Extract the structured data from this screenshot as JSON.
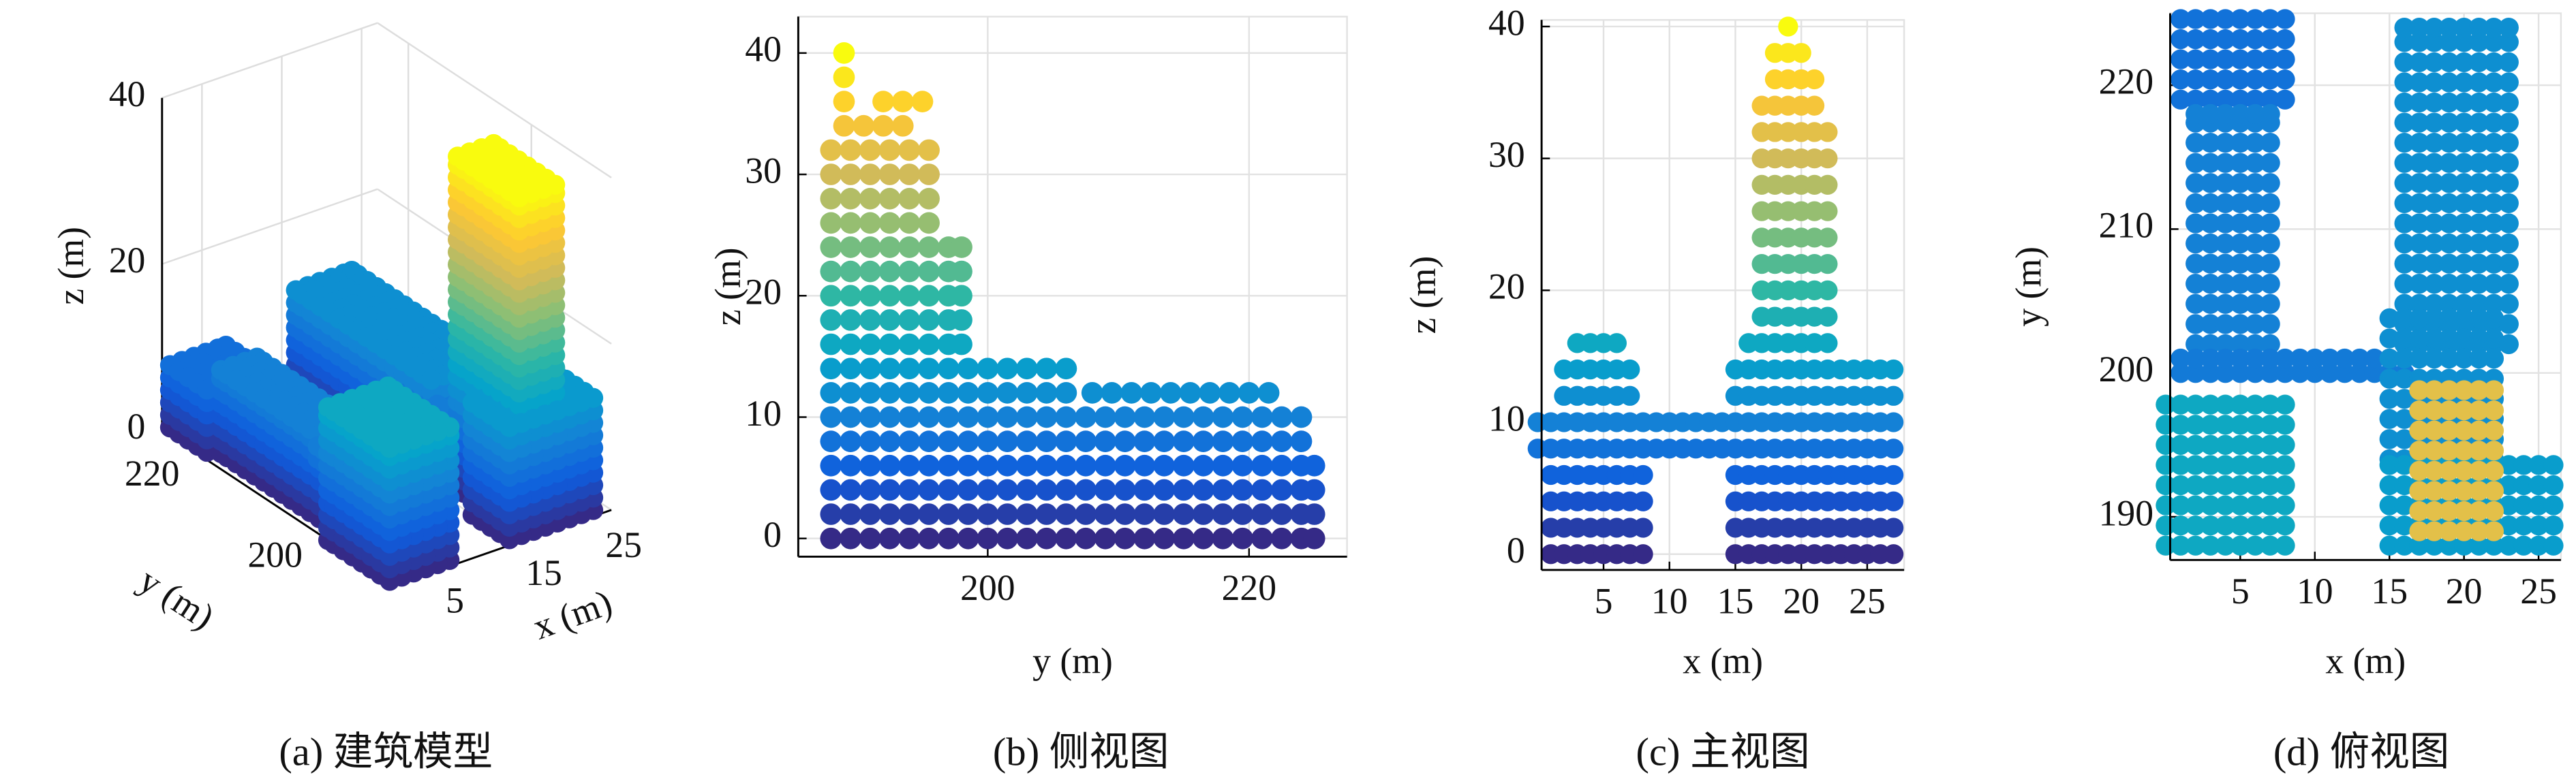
{
  "chart_data": [
    {
      "type": "scatter3d",
      "caption": "(a) 建筑模型",
      "xlabel": "x (m)",
      "ylabel": "y (m)",
      "zlabel": "z (m)",
      "xlim": [
        0,
        27
      ],
      "ylim": [
        187,
        225
      ],
      "zlim": [
        0,
        40
      ],
      "xticks": [
        5,
        15,
        25
      ],
      "yticks": [
        200,
        220
      ],
      "zticks": [
        0,
        20,
        40
      ],
      "clim": [
        0,
        40
      ],
      "colormap": "parula",
      "grid": true,
      "blocks": [
        {
          "x": [
            1,
            8
          ],
          "y": [
            219,
            225
          ],
          "z": [
            0,
            8
          ]
        },
        {
          "x": [
            2,
            7
          ],
          "y": [
            202,
            218
          ],
          "z": [
            0,
            10
          ]
        },
        {
          "x": [
            1,
            16
          ],
          "y": [
            200,
            201
          ],
          "z": [
            8,
            10
          ]
        },
        {
          "x": [
            16,
            23
          ],
          "y": [
            202,
            224
          ],
          "z": [
            0,
            12
          ]
        },
        {
          "x": [
            15,
            26
          ],
          "y": [
            188,
            194
          ],
          "z": [
            0,
            14
          ]
        },
        {
          "x": [
            17,
            22
          ],
          "y": [
            189,
            199
          ],
          "z": [
            0,
            40
          ]
        },
        {
          "x": [
            0,
            8
          ],
          "y": [
            188,
            198
          ],
          "z": [
            0,
            16
          ]
        }
      ]
    },
    {
      "type": "rows",
      "caption": "(b) 侧视图",
      "xlabel": "y (m)",
      "ylabel": "z (m)",
      "xlim": [
        185.5,
        227.5
      ],
      "ylim": [
        -1.5,
        43
      ],
      "xticks": [
        200,
        220
      ],
      "yticks": [
        0,
        10,
        20,
        30,
        40
      ],
      "clim": [
        0,
        40
      ],
      "colormap": "parula",
      "grid": true,
      "rows": [
        {
          "z": 0,
          "from": 188,
          "to": 225
        },
        {
          "z": 2,
          "from": 188,
          "to": 225
        },
        {
          "z": 4,
          "from": 188,
          "to": 225
        },
        {
          "z": 6,
          "from": 188,
          "to": 225
        },
        {
          "z": 8,
          "from": 188,
          "to": 224
        },
        {
          "z": 10,
          "from": 188,
          "to": 224
        },
        {
          "z": 12,
          "from": 188,
          "to": 206
        },
        {
          "z": 12,
          "from": 208,
          "to": 222
        },
        {
          "z": 14,
          "from": 188,
          "to": 206
        },
        {
          "z": 16,
          "from": 188,
          "to": 198
        },
        {
          "z": 18,
          "from": 188,
          "to": 198
        },
        {
          "z": 20,
          "from": 188,
          "to": 198
        },
        {
          "z": 22,
          "from": 188,
          "to": 198
        },
        {
          "z": 24,
          "from": 188,
          "to": 198
        },
        {
          "z": 26,
          "from": 188,
          "to": 196
        },
        {
          "z": 28,
          "from": 188,
          "to": 196
        },
        {
          "z": 30,
          "from": 188,
          "to": 196
        },
        {
          "z": 32,
          "from": 188,
          "to": 196
        },
        {
          "z": 34,
          "from": 189,
          "to": 194
        },
        {
          "z": 36,
          "from": 189,
          "to": 189
        },
        {
          "z": 36,
          "from": 192,
          "to": 195
        },
        {
          "z": 38,
          "from": 189,
          "to": 189
        },
        {
          "z": 40,
          "from": 189,
          "to": 189
        }
      ]
    },
    {
      "type": "rows",
      "caption": "(c) 主视图",
      "xlabel": "x (m)",
      "ylabel": "z (m)",
      "xlim": [
        0.3,
        27.8
      ],
      "ylim": [
        -1.2,
        40.5
      ],
      "xticks": [
        5,
        10,
        15,
        20,
        25
      ],
      "yticks": [
        0,
        10,
        20,
        30,
        40
      ],
      "clim": [
        0,
        40
      ],
      "colormap": "parula",
      "grid": true,
      "rows": [
        {
          "z": 0,
          "from": 1,
          "to": 8
        },
        {
          "z": 0,
          "from": 15,
          "to": 27
        },
        {
          "z": 2,
          "from": 1,
          "to": 8
        },
        {
          "z": 2,
          "from": 15,
          "to": 27
        },
        {
          "z": 4,
          "from": 1,
          "to": 8
        },
        {
          "z": 4,
          "from": 15,
          "to": 27
        },
        {
          "z": 6,
          "from": 1,
          "to": 8
        },
        {
          "z": 6,
          "from": 15,
          "to": 27
        },
        {
          "z": 8,
          "from": 0,
          "to": 27
        },
        {
          "z": 10,
          "from": 0,
          "to": 27
        },
        {
          "z": 12,
          "from": 2,
          "to": 7
        },
        {
          "z": 12,
          "from": 15,
          "to": 27
        },
        {
          "z": 14,
          "from": 2,
          "to": 7
        },
        {
          "z": 14,
          "from": 15,
          "to": 27
        },
        {
          "z": 16,
          "from": 3,
          "to": 6
        },
        {
          "z": 16,
          "from": 16,
          "to": 22
        },
        {
          "z": 18,
          "from": 17,
          "to": 22
        },
        {
          "z": 20,
          "from": 17,
          "to": 22
        },
        {
          "z": 22,
          "from": 17,
          "to": 22
        },
        {
          "z": 24,
          "from": 17,
          "to": 22
        },
        {
          "z": 26,
          "from": 17,
          "to": 22
        },
        {
          "z": 28,
          "from": 17,
          "to": 22
        },
        {
          "z": 30,
          "from": 17,
          "to": 22
        },
        {
          "z": 32,
          "from": 17,
          "to": 22
        },
        {
          "z": 34,
          "from": 17,
          "to": 21
        },
        {
          "z": 36,
          "from": 18,
          "to": 21
        },
        {
          "z": 38,
          "from": 18,
          "to": 20
        },
        {
          "z": 40,
          "from": 19,
          "to": 19
        }
      ]
    },
    {
      "type": "regions",
      "caption": "(d) 俯视图",
      "xlabel": "x (m)",
      "ylabel": "y (m)",
      "xlim": [
        0.3,
        26.5
      ],
      "ylim": [
        187,
        225
      ],
      "xticks": [
        5,
        10,
        15,
        20,
        25
      ],
      "yticks": [
        190,
        200,
        210,
        220
      ],
      "clim": [
        0,
        40
      ],
      "colormap": "parula",
      "grid": true,
      "regions": [
        {
          "x": [
            1,
            8
          ],
          "y": [
            219,
            225
          ],
          "z": 8
        },
        {
          "x": [
            2,
            7
          ],
          "y": [
            202,
            218
          ],
          "z": 10
        },
        {
          "x": [
            1,
            16
          ],
          "y": [
            200,
            201
          ],
          "z": 9
        },
        {
          "x": [
            16,
            23
          ],
          "y": [
            202,
            224
          ],
          "z": 12
        },
        {
          "x": [
            15,
            22
          ],
          "y": [
            194,
            204
          ],
          "z": 12
        },
        {
          "x": [
            0,
            8
          ],
          "y": [
            188,
            198
          ],
          "z": 16
        },
        {
          "x": [
            15,
            26
          ],
          "y": [
            188,
            194
          ],
          "z": 14
        },
        {
          "x": [
            17,
            22
          ],
          "y": [
            189,
            199
          ],
          "z": 32
        }
      ]
    }
  ]
}
